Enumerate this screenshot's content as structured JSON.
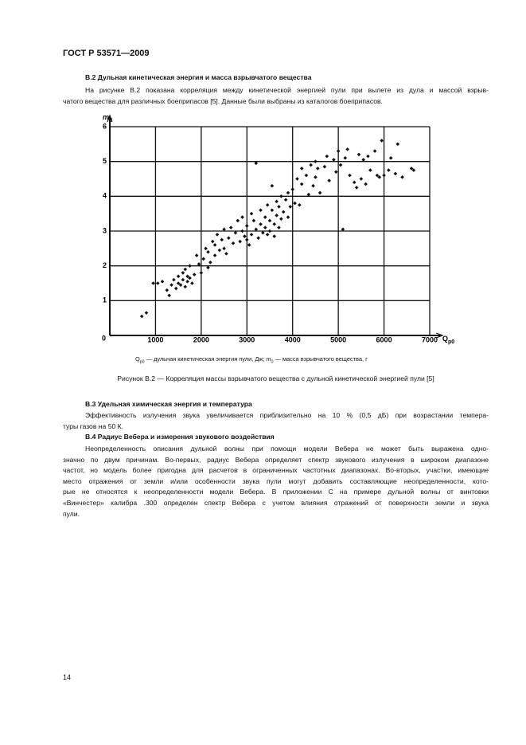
{
  "header": {
    "title": "ГОСТ Р 53571—2009"
  },
  "sections": [
    {
      "heading": "В.2 Дульная кинетическая энергия и масса взрывчатого вещества",
      "lines": [
        "На рисунке В.2 показана корреляция между кинетической энергией пули при вылете из дула и массой взрыв-",
        "чатого вещества для различных боеприпасов [5]. Данные были выбраны из каталогов боеприпасов."
      ]
    },
    {
      "heading": "В.3 Удельная химическая энергия и температура",
      "lines": [
        "Эффективность излучения звука увеличивается приблизительно на 10 % (0,5 дБ) при возрастании темпера-",
        "туры газов на 50 К."
      ]
    },
    {
      "heading": "В.4 Радиус Вебера и измерения звукового воздействия",
      "lines": [
        "Неопределенность описания дульной волны при помощи модели Вебера не может быть выражена одно-",
        "значно по двум причинам. Во-первых, радиус Вебера определяет спектр звукового излучения в широком диапазоне",
        "частот, но модель более пригодна для расчетов в ограниченных частотных диапазонах. Во-вторых, участки, имеющие",
        "место отражения от земли и/или особенности звука пули могут добавить составляющие неопределенности, кото-",
        "рые не относятся к неопределенности модели Вебера. В приложении С на примере дульной волны от винтовки",
        "«Винчестер» калибра .300 определен спектр Вебера с учетом влияния отражений от поверхности земли и звука",
        "пули."
      ]
    }
  ],
  "figure": {
    "note": [
      "Q",
      "p0",
      " — дульная кинетическая энергия пули, Дж; ",
      "m",
      "0",
      " — масса взрывчатого вещества, г"
    ],
    "caption": "Рисунок В.2 — Корреляция массы взрывчатого вещества с дульной кинетической энергией пули [5]"
  },
  "page_number": "14",
  "chart_data": {
    "type": "scatter",
    "x_label": "Q",
    "x_label_sub": "p0",
    "y_label": "m",
    "y_label_sub": "0",
    "xlim": [
      0,
      7000
    ],
    "ylim": [
      0,
      6
    ],
    "xticks": [
      1000,
      2000,
      3000,
      4000,
      5000,
      6000,
      7000
    ],
    "yticks": [
      0,
      1,
      2,
      3,
      4,
      5,
      6
    ],
    "grid": true,
    "color": "#111111",
    "x": [
      700,
      800,
      950,
      1050,
      1150,
      1250,
      1300,
      1350,
      1400,
      1450,
      1500,
      1500,
      1550,
      1600,
      1600,
      1650,
      1650,
      1700,
      1700,
      1750,
      1750,
      1800,
      1850,
      1900,
      1950,
      2000,
      2050,
      2100,
      2150,
      2150,
      2200,
      2250,
      2300,
      2300,
      2350,
      2400,
      2450,
      2500,
      2500,
      2550,
      2600,
      2650,
      2700,
      2750,
      2800,
      2850,
      2900,
      2900,
      2950,
      3000,
      3000,
      3050,
      3100,
      3100,
      3150,
      3200,
      3200,
      3250,
      3300,
      3300,
      3350,
      3400,
      3400,
      3450,
      3450,
      3500,
      3500,
      3550,
      3550,
      3600,
      3600,
      3650,
      3650,
      3700,
      3700,
      3750,
      3750,
      3800,
      3850,
      3900,
      3900,
      3950,
      4000,
      4050,
      4100,
      4150,
      4200,
      4200,
      4300,
      4350,
      4400,
      4450,
      4500,
      4500,
      4550,
      4600,
      4700,
      4750,
      4800,
      4900,
      4950,
      5000,
      5050,
      5100,
      5150,
      5200,
      5250,
      5350,
      5400,
      5450,
      5500,
      5550,
      5600,
      5650,
      5700,
      5800,
      5850,
      5900,
      5950,
      6000,
      6100,
      6150,
      6250,
      6300,
      6400,
      6600,
      6650
    ],
    "values": [
      0.55,
      0.65,
      1.5,
      1.5,
      1.55,
      1.3,
      1.15,
      1.45,
      1.6,
      1.35,
      1.7,
      1.5,
      1.45,
      1.6,
      1.8,
      1.4,
      1.9,
      1.55,
      1.7,
      1.65,
      2.0,
      1.5,
      1.75,
      2.3,
      2.05,
      1.8,
      2.2,
      2.5,
      2.4,
      1.95,
      2.1,
      2.7,
      2.3,
      2.6,
      2.9,
      2.45,
      2.75,
      3.05,
      2.5,
      2.35,
      2.8,
      3.1,
      2.65,
      2.95,
      3.3,
      2.7,
      3.0,
      3.4,
      2.85,
      3.15,
      2.75,
      2.6,
      3.5,
      2.9,
      3.3,
      4.95,
      3.05,
      2.8,
      3.6,
      3.2,
      2.95,
      3.4,
      3.1,
      3.75,
      2.9,
      3.3,
      3.0,
      4.3,
      3.6,
      3.2,
      2.85,
      3.85,
      3.45,
      3.1,
      3.7,
      3.35,
      4.0,
      3.55,
      3.9,
      4.1,
      3.4,
      3.7,
      4.2,
      3.8,
      4.5,
      3.75,
      4.35,
      4.8,
      4.6,
      4.05,
      4.9,
      4.3,
      4.55,
      5.0,
      4.8,
      4.1,
      4.85,
      5.15,
      4.45,
      5.05,
      4.7,
      5.3,
      4.9,
      3.05,
      5.1,
      5.35,
      4.6,
      4.4,
      4.25,
      5.2,
      4.5,
      5.05,
      4.35,
      5.15,
      4.75,
      5.3,
      4.6,
      4.55,
      5.6,
      4.6,
      4.75,
      5.1,
      4.65,
      5.5,
      4.55,
      4.8,
      4.75
    ]
  }
}
